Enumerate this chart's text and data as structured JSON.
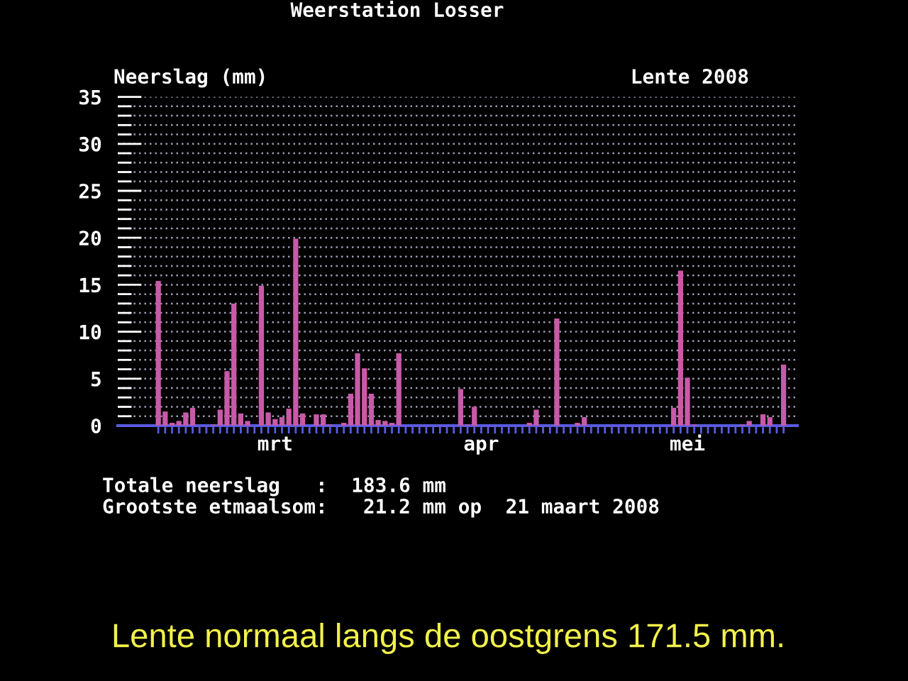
{
  "chart_data": {
    "type": "bar",
    "title": "Weerstation Losser",
    "subtitle": "Lente 2008",
    "ylabel": "Neerslag (mm)",
    "categories": [
      null,
      null,
      null,
      null,
      null,
      null,
      null,
      null,
      null,
      null,
      null,
      null,
      null,
      null,
      null,
      null,
      null,
      "mrt",
      null,
      null,
      null,
      null,
      null,
      null,
      null,
      null,
      null,
      null,
      null,
      null,
      null,
      null,
      null,
      null,
      null,
      null,
      null,
      null,
      null,
      null,
      null,
      null,
      null,
      null,
      null,
      null,
      null,
      "apr",
      null,
      null,
      null,
      null,
      null,
      null,
      null,
      null,
      null,
      null,
      null,
      null,
      null,
      null,
      null,
      null,
      null,
      null,
      null,
      null,
      null,
      null,
      null,
      null,
      null,
      null,
      null,
      null,
      null,
      "mei",
      null,
      null,
      null,
      null,
      null,
      null,
      null,
      null,
      null,
      null,
      null,
      null,
      null,
      null
    ],
    "series": [
      {
        "color": "#c85aa8",
        "values": [
          15.4,
          1.5,
          0.3,
          0.5,
          1.4,
          1.9,
          null,
          null,
          0.1,
          1.7,
          5.8,
          13.0,
          1.3,
          0.5,
          null,
          14.9,
          1.4,
          0.7,
          0.9,
          1.8,
          19.9,
          1.3,
          null,
          1.2,
          1.2,
          0.1,
          null,
          0.3,
          3.4,
          7.7,
          6.1,
          3.4,
          0.6,
          0.5,
          0.3,
          7.7,
          null,
          null,
          null,
          null,
          null,
          null,
          null,
          null,
          3.9,
          0.1,
          2.0,
          null,
          null,
          null,
          null,
          null,
          null,
          null,
          0.3,
          1.7,
          null,
          null,
          11.4,
          null,
          null,
          0.3,
          0.9,
          null,
          null,
          null,
          null,
          null,
          null,
          null,
          null,
          null,
          null,
          null,
          null,
          1.9,
          16.5,
          5.1,
          0.1,
          null,
          null,
          null,
          null,
          null,
          null,
          0.1,
          0.5,
          null,
          1.2,
          0.9,
          null,
          6.5
        ]
      }
    ],
    "ylim": [
      0,
      35
    ],
    "yticks": [
      0,
      {
        "value": 1,
        "label": null
      },
      {
        "value": 2,
        "label": null
      },
      {
        "value": 3,
        "label": null
      },
      {
        "value": 4,
        "label": null
      },
      5,
      {
        "value": 6,
        "label": null
      },
      {
        "value": 7,
        "label": null
      },
      {
        "value": 8,
        "label": null
      },
      {
        "value": 9,
        "label": null
      },
      10,
      {
        "value": 11,
        "label": null
      },
      {
        "value": 12,
        "label": null
      },
      {
        "value": 13,
        "label": null
      },
      {
        "value": 14,
        "label": null
      },
      15,
      {
        "value": 16,
        "label": null
      },
      {
        "value": 17,
        "label": null
      },
      {
        "value": 18,
        "label": null
      },
      {
        "value": 19,
        "label": null
      },
      20,
      {
        "value": 21,
        "label": null
      },
      {
        "value": 22,
        "label": null
      },
      {
        "value": 23,
        "label": null
      },
      {
        "value": 24,
        "label": null
      },
      25,
      {
        "value": 26,
        "label": null
      },
      {
        "value": 27,
        "label": null
      },
      {
        "value": 28,
        "label": null
      },
      {
        "value": 29,
        "label": null
      },
      30,
      {
        "value": 31,
        "label": null
      },
      {
        "value": 32,
        "label": null
      },
      {
        "value": 33,
        "label": null
      },
      {
        "value": 34,
        "label": null
      },
      35
    ],
    "grid": "y",
    "annotations": [
      "Totale neerslag   :  183.6 mm",
      "Grootste etmaalsom:   21.2 mm op  21 maart 2008",
      "Lente normaal langs de oostgrens 171.5 mm."
    ]
  }
}
